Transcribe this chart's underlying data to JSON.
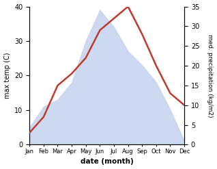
{
  "months": [
    "Jan",
    "Feb",
    "Mar",
    "Apr",
    "May",
    "Jun",
    "Jul",
    "Aug",
    "Sep",
    "Oct",
    "Nov",
    "Dec"
  ],
  "temperature": [
    5,
    11,
    13,
    18,
    30,
    39,
    34,
    27,
    23,
    18,
    10,
    1
  ],
  "precipitation": [
    3,
    7,
    15,
    18,
    22,
    29,
    32,
    35,
    28,
    20,
    13,
    10
  ],
  "precip_color": "#c0392b",
  "temp_fill_color": "#c8d4f0",
  "temp_fill_alpha": 0.9,
  "ylabel_left": "max temp (C)",
  "ylabel_right": "med. precipitation (kg/m2)",
  "xlabel": "date (month)",
  "ylim_left": [
    0,
    40
  ],
  "ylim_right": [
    0,
    35
  ],
  "yticks_left": [
    0,
    10,
    20,
    30,
    40
  ],
  "yticks_right": [
    0,
    5,
    10,
    15,
    20,
    25,
    30,
    35
  ]
}
